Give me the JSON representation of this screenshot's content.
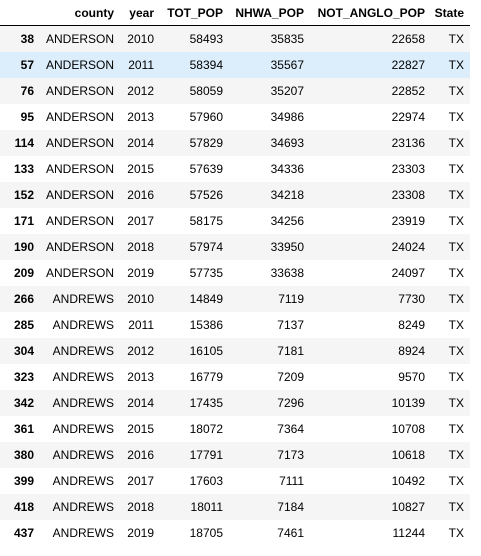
{
  "table": {
    "columns": [
      "",
      "county",
      "year",
      "TOT_POP",
      "NHWA_POP",
      "NOT_ANGLO_POP",
      "State"
    ],
    "hovered_row_index": 1,
    "rows": [
      [
        "38",
        "ANDERSON",
        "2010",
        "58493",
        "35835",
        "22658",
        "TX"
      ],
      [
        "57",
        "ANDERSON",
        "2011",
        "58394",
        "35567",
        "22827",
        "TX"
      ],
      [
        "76",
        "ANDERSON",
        "2012",
        "58059",
        "35207",
        "22852",
        "TX"
      ],
      [
        "95",
        "ANDERSON",
        "2013",
        "57960",
        "34986",
        "22974",
        "TX"
      ],
      [
        "114",
        "ANDERSON",
        "2014",
        "57829",
        "34693",
        "23136",
        "TX"
      ],
      [
        "133",
        "ANDERSON",
        "2015",
        "57639",
        "34336",
        "23303",
        "TX"
      ],
      [
        "152",
        "ANDERSON",
        "2016",
        "57526",
        "34218",
        "23308",
        "TX"
      ],
      [
        "171",
        "ANDERSON",
        "2017",
        "58175",
        "34256",
        "23919",
        "TX"
      ],
      [
        "190",
        "ANDERSON",
        "2018",
        "57974",
        "33950",
        "24024",
        "TX"
      ],
      [
        "209",
        "ANDERSON",
        "2019",
        "57735",
        "33638",
        "24097",
        "TX"
      ],
      [
        "266",
        "ANDREWS",
        "2010",
        "14849",
        "7119",
        "7730",
        "TX"
      ],
      [
        "285",
        "ANDREWS",
        "2011",
        "15386",
        "7137",
        "8249",
        "TX"
      ],
      [
        "304",
        "ANDREWS",
        "2012",
        "16105",
        "7181",
        "8924",
        "TX"
      ],
      [
        "323",
        "ANDREWS",
        "2013",
        "16779",
        "7209",
        "9570",
        "TX"
      ],
      [
        "342",
        "ANDREWS",
        "2014",
        "17435",
        "7296",
        "10139",
        "TX"
      ],
      [
        "361",
        "ANDREWS",
        "2015",
        "18072",
        "7364",
        "10708",
        "TX"
      ],
      [
        "380",
        "ANDREWS",
        "2016",
        "17791",
        "7173",
        "10618",
        "TX"
      ],
      [
        "399",
        "ANDREWS",
        "2017",
        "17603",
        "7111",
        "10492",
        "TX"
      ],
      [
        "418",
        "ANDREWS",
        "2018",
        "18011",
        "7184",
        "10827",
        "TX"
      ],
      [
        "437",
        "ANDREWS",
        "2019",
        "18705",
        "7461",
        "11244",
        "TX"
      ]
    ]
  },
  "colors": {
    "stripe": "#f5f5f5",
    "hover": "#dceefb",
    "header_border": "#000000"
  }
}
